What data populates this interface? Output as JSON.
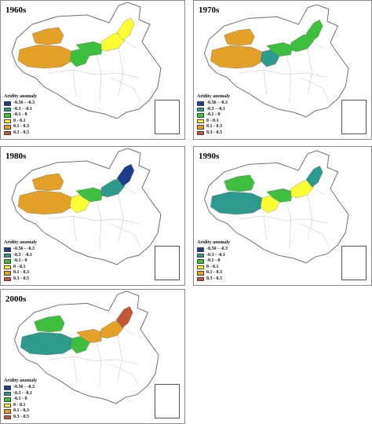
{
  "legend": {
    "title": "Aridity anomaly",
    "classes": [
      {
        "label": "-0.56 - -0.3",
        "color": "#1f3d8a"
      },
      {
        "label": "-0.3 - -0.1",
        "color": "#2e9a8c"
      },
      {
        "label": "-0.1 - 0",
        "color": "#3fbf3f"
      },
      {
        "label": "0 - 0.1",
        "color": "#ffff33"
      },
      {
        "label": "0.1 - 0.3",
        "color": "#e2a126"
      },
      {
        "label": "0.3 - 0.5",
        "color": "#c2573a"
      }
    ]
  },
  "panels": [
    {
      "decade": "1960s",
      "regions": {
        "tarim": 4,
        "dzungaria": 4,
        "hexi": 2,
        "mongolia_w": 2,
        "mongolia_e": 3,
        "northeast": 3
      }
    },
    {
      "decade": "1970s",
      "regions": {
        "tarim": 4,
        "dzungaria": 4,
        "hexi": 1,
        "mongolia_w": 2,
        "mongolia_e": 2,
        "northeast": 2
      }
    },
    {
      "decade": "1980s",
      "regions": {
        "tarim": 4,
        "dzungaria": 4,
        "hexi": 3,
        "mongolia_w": 2,
        "mongolia_e": 1,
        "northeast": 0
      }
    },
    {
      "decade": "1990s",
      "regions": {
        "tarim": 1,
        "dzungaria": 2,
        "hexi": 3,
        "mongolia_w": 2,
        "mongolia_e": 3,
        "northeast": 1
      }
    },
    {
      "decade": "2000s",
      "regions": {
        "tarim": 1,
        "dzungaria": 2,
        "hexi": 2,
        "mongolia_w": 4,
        "mongolia_e": 4,
        "northeast": 5
      }
    }
  ]
}
